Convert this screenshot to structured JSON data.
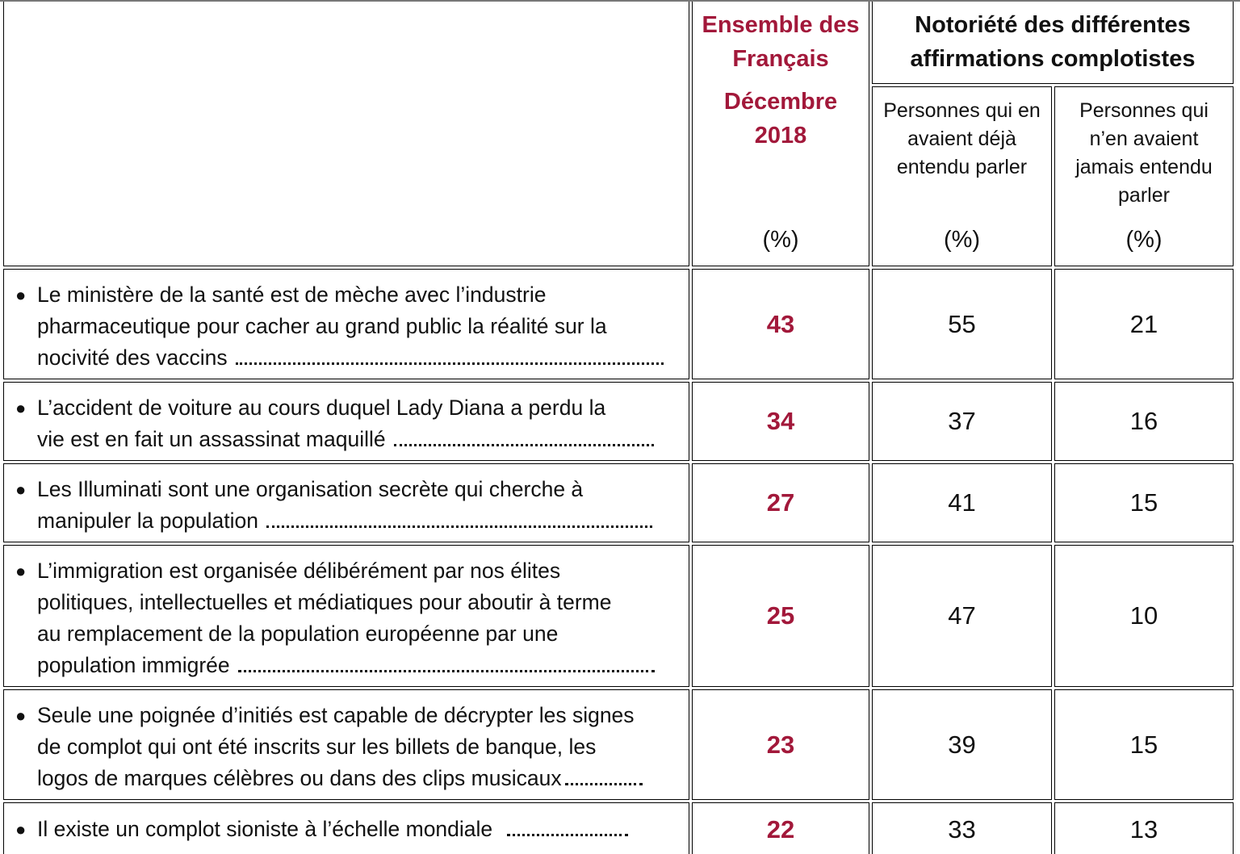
{
  "header": {
    "ensemble_line1": "Ensemble des",
    "ensemble_line2": "Français",
    "date_line1": "Décembre",
    "date_line2": "2018",
    "notoriete_line1": "Notoriété des différentes",
    "notoriete_line2": "affirmations complotistes",
    "sub_heard": [
      "Personnes qui en",
      "avaient déjà",
      "entendu parler"
    ],
    "sub_never": [
      "Personnes qui",
      "n’en avaient",
      "jamais entendu",
      "parler"
    ],
    "pct": "(%)"
  },
  "rows": [
    {
      "lines": [
        "Le ministère de la santé est de mèche avec l’industrie",
        "pharmaceutique pour cacher au grand public la réalité sur la",
        "nocivité des vaccins"
      ],
      "ensemble": "43",
      "heard": "55",
      "never": "21"
    },
    {
      "lines": [
        "L’accident de voiture au cours duquel Lady Diana a perdu la",
        "vie est en fait un assassinat maquillé"
      ],
      "ensemble": "34",
      "heard": "37",
      "never": "16"
    },
    {
      "lines": [
        "Les Illuminati sont une organisation secrète qui cherche à",
        "manipuler la population"
      ],
      "ensemble": "27",
      "heard": "41",
      "never": "15"
    },
    {
      "lines": [
        "L’immigration est organisée délibérément par nos élites",
        "politiques, intellectuelles et médiatiques pour aboutir à terme",
        "au remplacement de la population européenne par une",
        "population immigrée"
      ],
      "ensemble": "25",
      "heard": "47",
      "never": "10"
    },
    {
      "lines": [
        "Seule une poignée d’initiés est capable de décrypter les signes",
        "de complot qui ont été inscrits sur les billets de banque, les",
        "logos de marques célèbres ou dans des clips musicaux"
      ],
      "ensemble": "23",
      "heard": "39",
      "never": "15"
    },
    {
      "lines": [
        "Il existe un complot sioniste à l’échelle mondiale"
      ],
      "ensemble": "22",
      "heard": "33",
      "never": "13"
    }
  ],
  "colors": {
    "accent_red": "#a2183a",
    "text": "#111111",
    "border": "#000000"
  }
}
